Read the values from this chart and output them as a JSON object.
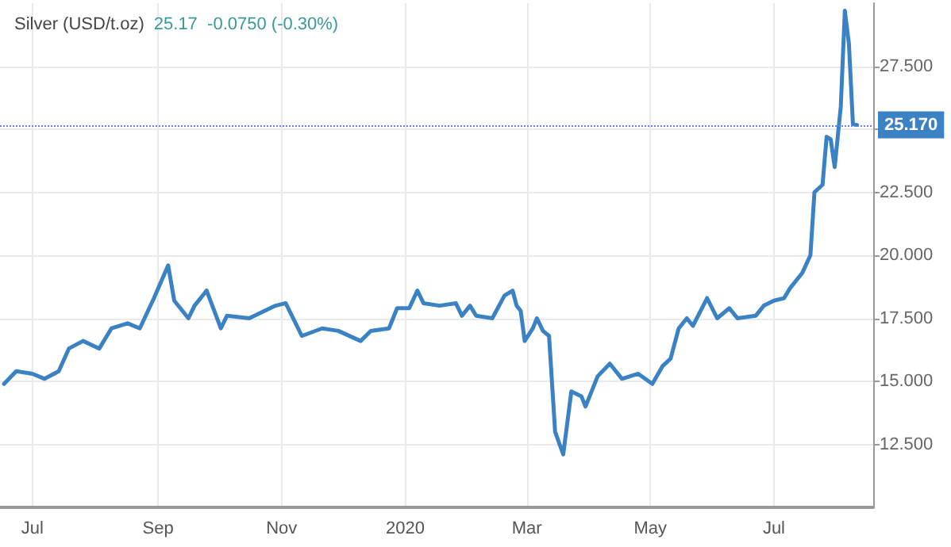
{
  "chart_data": {
    "type": "line",
    "title": "Silver (USD/t.oz)",
    "annotations": [
      "25.17  -0.0750 (-0.30%)"
    ],
    "x": [
      "2019-06-17",
      "2019-06-23",
      "2019-07-01",
      "2019-07-07",
      "2019-07-14",
      "2019-07-19",
      "2019-07-26",
      "2019-08-03",
      "2019-08-09",
      "2019-08-17",
      "2019-08-23",
      "2019-08-30",
      "2019-09-06",
      "2019-09-09",
      "2019-09-16",
      "2019-09-19",
      "2019-09-25",
      "2019-10-02",
      "2019-10-05",
      "2019-10-16",
      "2019-10-29",
      "2019-11-03",
      "2019-11-11",
      "2019-11-21",
      "2019-11-29",
      "2019-12-10",
      "2019-12-15",
      "2019-12-24",
      "2019-12-28",
      "2020-01-03",
      "2020-01-07",
      "2020-01-10",
      "2020-01-18",
      "2020-01-26",
      "2020-01-29",
      "2020-02-02",
      "2020-02-05",
      "2020-02-13",
      "2020-02-19",
      "2020-02-23",
      "2020-02-25",
      "2020-02-27",
      "2020-02-29",
      "2020-03-04",
      "2020-03-06",
      "2020-03-09",
      "2020-03-12",
      "2020-03-15",
      "2020-03-19",
      "2020-03-23",
      "2020-03-28",
      "2020-03-30",
      "2020-04-05",
      "2020-04-11",
      "2020-04-17",
      "2020-04-25",
      "2020-05-02",
      "2020-05-07",
      "2020-05-11",
      "2020-05-15",
      "2020-05-19",
      "2020-05-22",
      "2020-05-29",
      "2020-06-03",
      "2020-06-09",
      "2020-06-13",
      "2020-06-22",
      "2020-06-26",
      "2020-07-01",
      "2020-07-06",
      "2020-07-09",
      "2020-07-15",
      "2020-07-19",
      "2020-07-21",
      "2020-07-25",
      "2020-07-27",
      "2020-07-29",
      "2020-07-31",
      "2020-08-01",
      "2020-08-03",
      "2020-08-05",
      "2020-08-07",
      "2020-08-09",
      "2020-08-11"
    ],
    "series": [
      {
        "color": "#3b82c4",
        "values": [
          14.9,
          15.4,
          15.3,
          15.1,
          15.4,
          16.3,
          16.6,
          16.3,
          17.1,
          17.3,
          17.1,
          18.3,
          19.6,
          18.2,
          17.5,
          18.0,
          18.6,
          17.1,
          17.6,
          17.5,
          18.0,
          18.1,
          16.8,
          17.1,
          17.0,
          16.6,
          17.0,
          17.1,
          17.9,
          17.9,
          18.6,
          18.1,
          18.0,
          18.1,
          17.6,
          18.0,
          17.6,
          17.5,
          18.4,
          18.6,
          18.0,
          17.8,
          16.6,
          17.1,
          17.5,
          17.0,
          16.8,
          13.0,
          12.1,
          14.6,
          14.4,
          14.0,
          15.2,
          15.7,
          15.1,
          15.3,
          14.9,
          15.6,
          15.9,
          17.1,
          17.5,
          17.2,
          18.3,
          17.5,
          17.9,
          17.5,
          17.6,
          18.0,
          18.2,
          18.3,
          18.7,
          19.3,
          20.0,
          22.5,
          22.8,
          24.7,
          24.6,
          23.5,
          24.3,
          25.9,
          29.7,
          28.4,
          25.2,
          25.17
        ]
      }
    ],
    "xlim": [
      "2019-06-15",
      "2020-08-19"
    ],
    "xticks": [
      {
        "value": "2019-07-01",
        "label": "Jul"
      },
      {
        "value": "2019-09-01",
        "label": "Sep"
      },
      {
        "value": "2019-11-01",
        "label": "Nov"
      },
      {
        "value": "2020-01-01",
        "label": "2020"
      },
      {
        "value": "2020-03-01",
        "label": "Mar"
      },
      {
        "value": "2020-05-01",
        "label": "May"
      },
      {
        "value": "2020-07-01",
        "label": "Jul"
      }
    ],
    "ylim": [
      10,
      30
    ],
    "yticks": [
      {
        "value": 12.5,
        "label": "12.500"
      },
      {
        "value": 15,
        "label": "15.000"
      },
      {
        "value": 17.5,
        "label": "17.500"
      },
      {
        "value": 20,
        "label": "20.000"
      },
      {
        "value": 22.5,
        "label": "22.500"
      },
      {
        "value": 25,
        "label": null
      },
      {
        "value": 27.5,
        "label": "27.500"
      }
    ],
    "ref_lines": [
      {
        "axis": "y",
        "value": 25.17,
        "label": "25.170",
        "color": "#6b7cf0",
        "line_style": "dotted"
      }
    ],
    "grid": true,
    "marker": "none",
    "line_style": "solid"
  }
}
